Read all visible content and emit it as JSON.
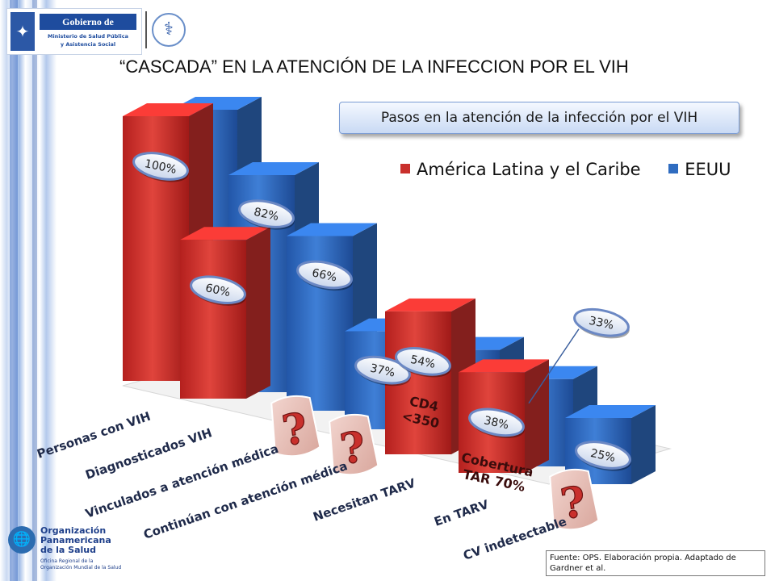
{
  "header": {
    "gov_emblem_icon": "coat-of-arms-icon",
    "gov_name": "Gobierno de Guatemala",
    "gov_sub1": "Ministerio de Salud Pública",
    "gov_sub2": "y Asistencia Social",
    "caduceus_icon": "caduceus-icon"
  },
  "title": "“CASCADA” EN LA ATENCIÓN DE LA INFECCION POR EL VIH",
  "chart_data": {
    "type": "bar",
    "title": "Pasos en la atención de la infección por el VIH",
    "categories": [
      "Personas con VIH",
      "Diagnosticados VIH",
      "Vinculados a atención médica",
      "Continúan con atención médica",
      "Necesitan TARV",
      "En TARV",
      "CV indetectable"
    ],
    "series": [
      {
        "name": "América Latina y el Caribe",
        "color": "#c9302c",
        "values": [
          100,
          60,
          null,
          null,
          54,
          38,
          null
        ],
        "labels": [
          "100%",
          "60%",
          "",
          "",
          "54%",
          "38%",
          ""
        ]
      },
      {
        "name": "EEUU",
        "color": "#2f6cc0",
        "values": [
          100,
          82,
          66,
          37,
          37,
          33,
          25
        ],
        "labels": [
          "",
          "82%",
          "66%",
          "37%",
          "",
          "33%",
          "25%"
        ]
      }
    ],
    "annotations": [
      {
        "category": "Necesitan TARV",
        "lines": [
          "CD4",
          "<350"
        ]
      },
      {
        "category": "En TARV",
        "lines": [
          "Cobertura",
          "TAR 70%"
        ]
      }
    ],
    "unknown_marks": [
      "Vinculados a atención médica",
      "Continúan con atención médica",
      "CV indetectable"
    ],
    "unknown_symbol": "?",
    "legend_position": "top-right",
    "ylim": [
      0,
      100
    ],
    "grid": false
  },
  "ops_logo": {
    "globe_icon": "globe-icon",
    "name_line1": "Organización",
    "name_line2": "Panamericana",
    "name_line3": "de la Salud",
    "sub1": "Oficina Regional de la",
    "sub2": "Organización Mundial de la Salud"
  },
  "source": "Fuente: OPS. Elaboración propia. Adaptado de Gardner et al."
}
